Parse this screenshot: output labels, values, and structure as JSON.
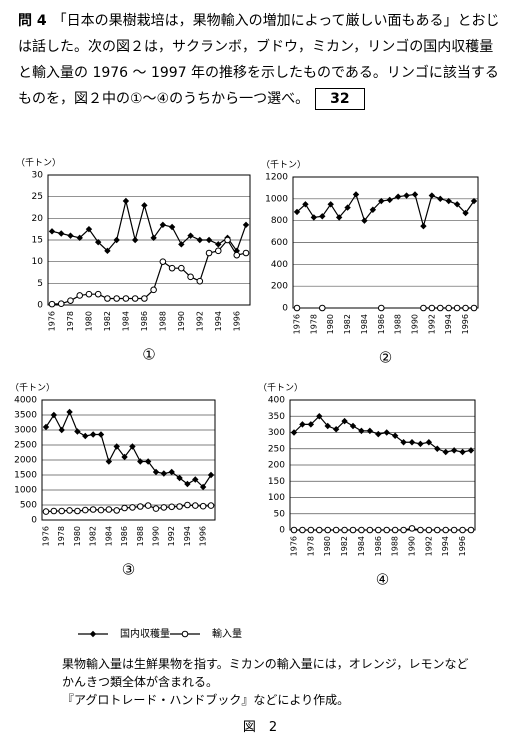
{
  "question": {
    "number": "問 4",
    "text": "「日本の果樹栽培は，果物輸入の増加によって厳しい面もある」とおじは話した。次の図２は，サクランボ，ブドウ，ミカン，リンゴの国内収穫量と輸入量の 1976 ～ 1997 年の推移を示したものである。リンゴに該当するものを，図２中の①～④のうちから一つ選べ。",
    "answer_box": "32"
  },
  "chart_data": [
    {
      "type": "line",
      "caption": "①",
      "y_unit_label": "（千トン）",
      "grid": true,
      "categories": [
        "1976",
        null,
        "1978",
        null,
        "1980",
        null,
        "1982",
        null,
        "1984",
        null,
        "1986",
        null,
        "1988",
        null,
        "1990",
        null,
        "1992",
        null,
        "1994",
        null,
        "1996",
        null
      ],
      "ylim": [
        0,
        30
      ],
      "yticks": [
        0,
        5,
        10,
        15,
        20,
        25,
        30
      ],
      "series": [
        {
          "name": "国内収穫量",
          "color": "#000000",
          "marker": "diamond",
          "values": [
            17,
            16.5,
            16,
            15.5,
            17.5,
            14.5,
            12.5,
            15,
            24,
            15,
            23,
            15.5,
            18.5,
            18,
            14,
            16,
            15,
            15,
            14,
            15.5,
            12.5,
            18.5
          ]
        },
        {
          "name": "輸入量",
          "color": "#000000",
          "marker": "circle",
          "values": [
            0.2,
            0.3,
            1,
            2.2,
            2.5,
            2.5,
            1.5,
            1.5,
            1.5,
            1.5,
            1.5,
            3.5,
            10,
            8.5,
            8.5,
            6.5,
            5.5,
            12,
            12.5,
            15,
            11.5,
            12
          ]
        }
      ]
    },
    {
      "type": "line",
      "caption": "②",
      "y_unit_label": "（千トン）",
      "grid": true,
      "categories": [
        "1976",
        null,
        "1978",
        null,
        "1980",
        null,
        "1982",
        null,
        "1984",
        null,
        "1986",
        null,
        "1988",
        null,
        "1990",
        null,
        "1992",
        null,
        "1994",
        null,
        "1996",
        null
      ],
      "ylim": [
        0,
        1200
      ],
      "yticks": [
        0,
        200,
        400,
        600,
        800,
        1000,
        1200
      ],
      "series": [
        {
          "name": "国内収穫量",
          "color": "#000000",
          "marker": "diamond",
          "values": [
            880,
            950,
            830,
            840,
            950,
            830,
            920,
            1040,
            800,
            900,
            980,
            990,
            1020,
            1030,
            1040,
            750,
            1030,
            1000,
            980,
            950,
            870,
            980
          ]
        },
        {
          "name": "輸入量",
          "color": "#000000",
          "marker": "circle",
          "values": [
            0,
            null,
            null,
            0,
            null,
            null,
            null,
            null,
            null,
            null,
            0,
            null,
            null,
            null,
            null,
            0,
            0,
            0,
            0,
            0,
            0,
            0
          ]
        }
      ]
    },
    {
      "type": "line",
      "caption": "③",
      "y_unit_label": "（千トン）",
      "grid": true,
      "categories": [
        "1976",
        null,
        "1978",
        null,
        "1980",
        null,
        "1982",
        null,
        "1984",
        null,
        "1986",
        null,
        "1988",
        null,
        "1990",
        null,
        "1992",
        null,
        "1994",
        null,
        "1996",
        null
      ],
      "ylim": [
        0,
        4000
      ],
      "yticks": [
        0,
        500,
        1000,
        1500,
        2000,
        2500,
        3000,
        3500,
        4000
      ],
      "series": [
        {
          "name": "国内収穫量",
          "color": "#000000",
          "marker": "diamond",
          "values": [
            3100,
            3500,
            3000,
            3600,
            2950,
            2800,
            2850,
            2850,
            1950,
            2450,
            2100,
            2450,
            1950,
            1950,
            1600,
            1550,
            1600,
            1400,
            1200,
            1350,
            1100,
            1500
          ]
        },
        {
          "name": "輸入量",
          "color": "#000000",
          "marker": "circle",
          "values": [
            280,
            300,
            300,
            320,
            300,
            330,
            350,
            330,
            350,
            320,
            400,
            420,
            450,
            480,
            380,
            420,
            440,
            450,
            500,
            480,
            460,
            480
          ]
        }
      ]
    },
    {
      "type": "line",
      "caption": "④",
      "y_unit_label": "（千トン）",
      "grid": true,
      "categories": [
        "1976",
        null,
        "1978",
        null,
        "1980",
        null,
        "1982",
        null,
        "1984",
        null,
        "1986",
        null,
        "1988",
        null,
        "1990",
        null,
        "1992",
        null,
        "1994",
        null,
        "1996",
        null
      ],
      "ylim": [
        0,
        400
      ],
      "yticks": [
        0,
        50,
        100,
        150,
        200,
        250,
        300,
        350,
        400
      ],
      "series": [
        {
          "name": "国内収穫量",
          "color": "#000000",
          "marker": "diamond",
          "values": [
            300,
            325,
            325,
            350,
            320,
            310,
            335,
            320,
            305,
            305,
            295,
            300,
            290,
            270,
            270,
            265,
            270,
            250,
            240,
            245,
            240,
            245
          ]
        },
        {
          "name": "輸入量",
          "color": "#000000",
          "marker": "circle",
          "values": [
            0,
            0,
            0,
            0,
            0,
            0,
            0,
            0,
            0,
            0,
            0,
            0,
            0,
            0,
            5,
            0,
            0,
            0,
            0,
            0,
            0,
            0
          ]
        }
      ]
    }
  ],
  "notes": [
    "果物輸入量は生鮮果物を指す。ミカンの輸入量には，オレンジ，レモンなど",
    "かんきつ類全体が含まれる。",
    "『アグロトレード・ハンドブック』などにより作成。"
  ],
  "figure_label": "図　2"
}
